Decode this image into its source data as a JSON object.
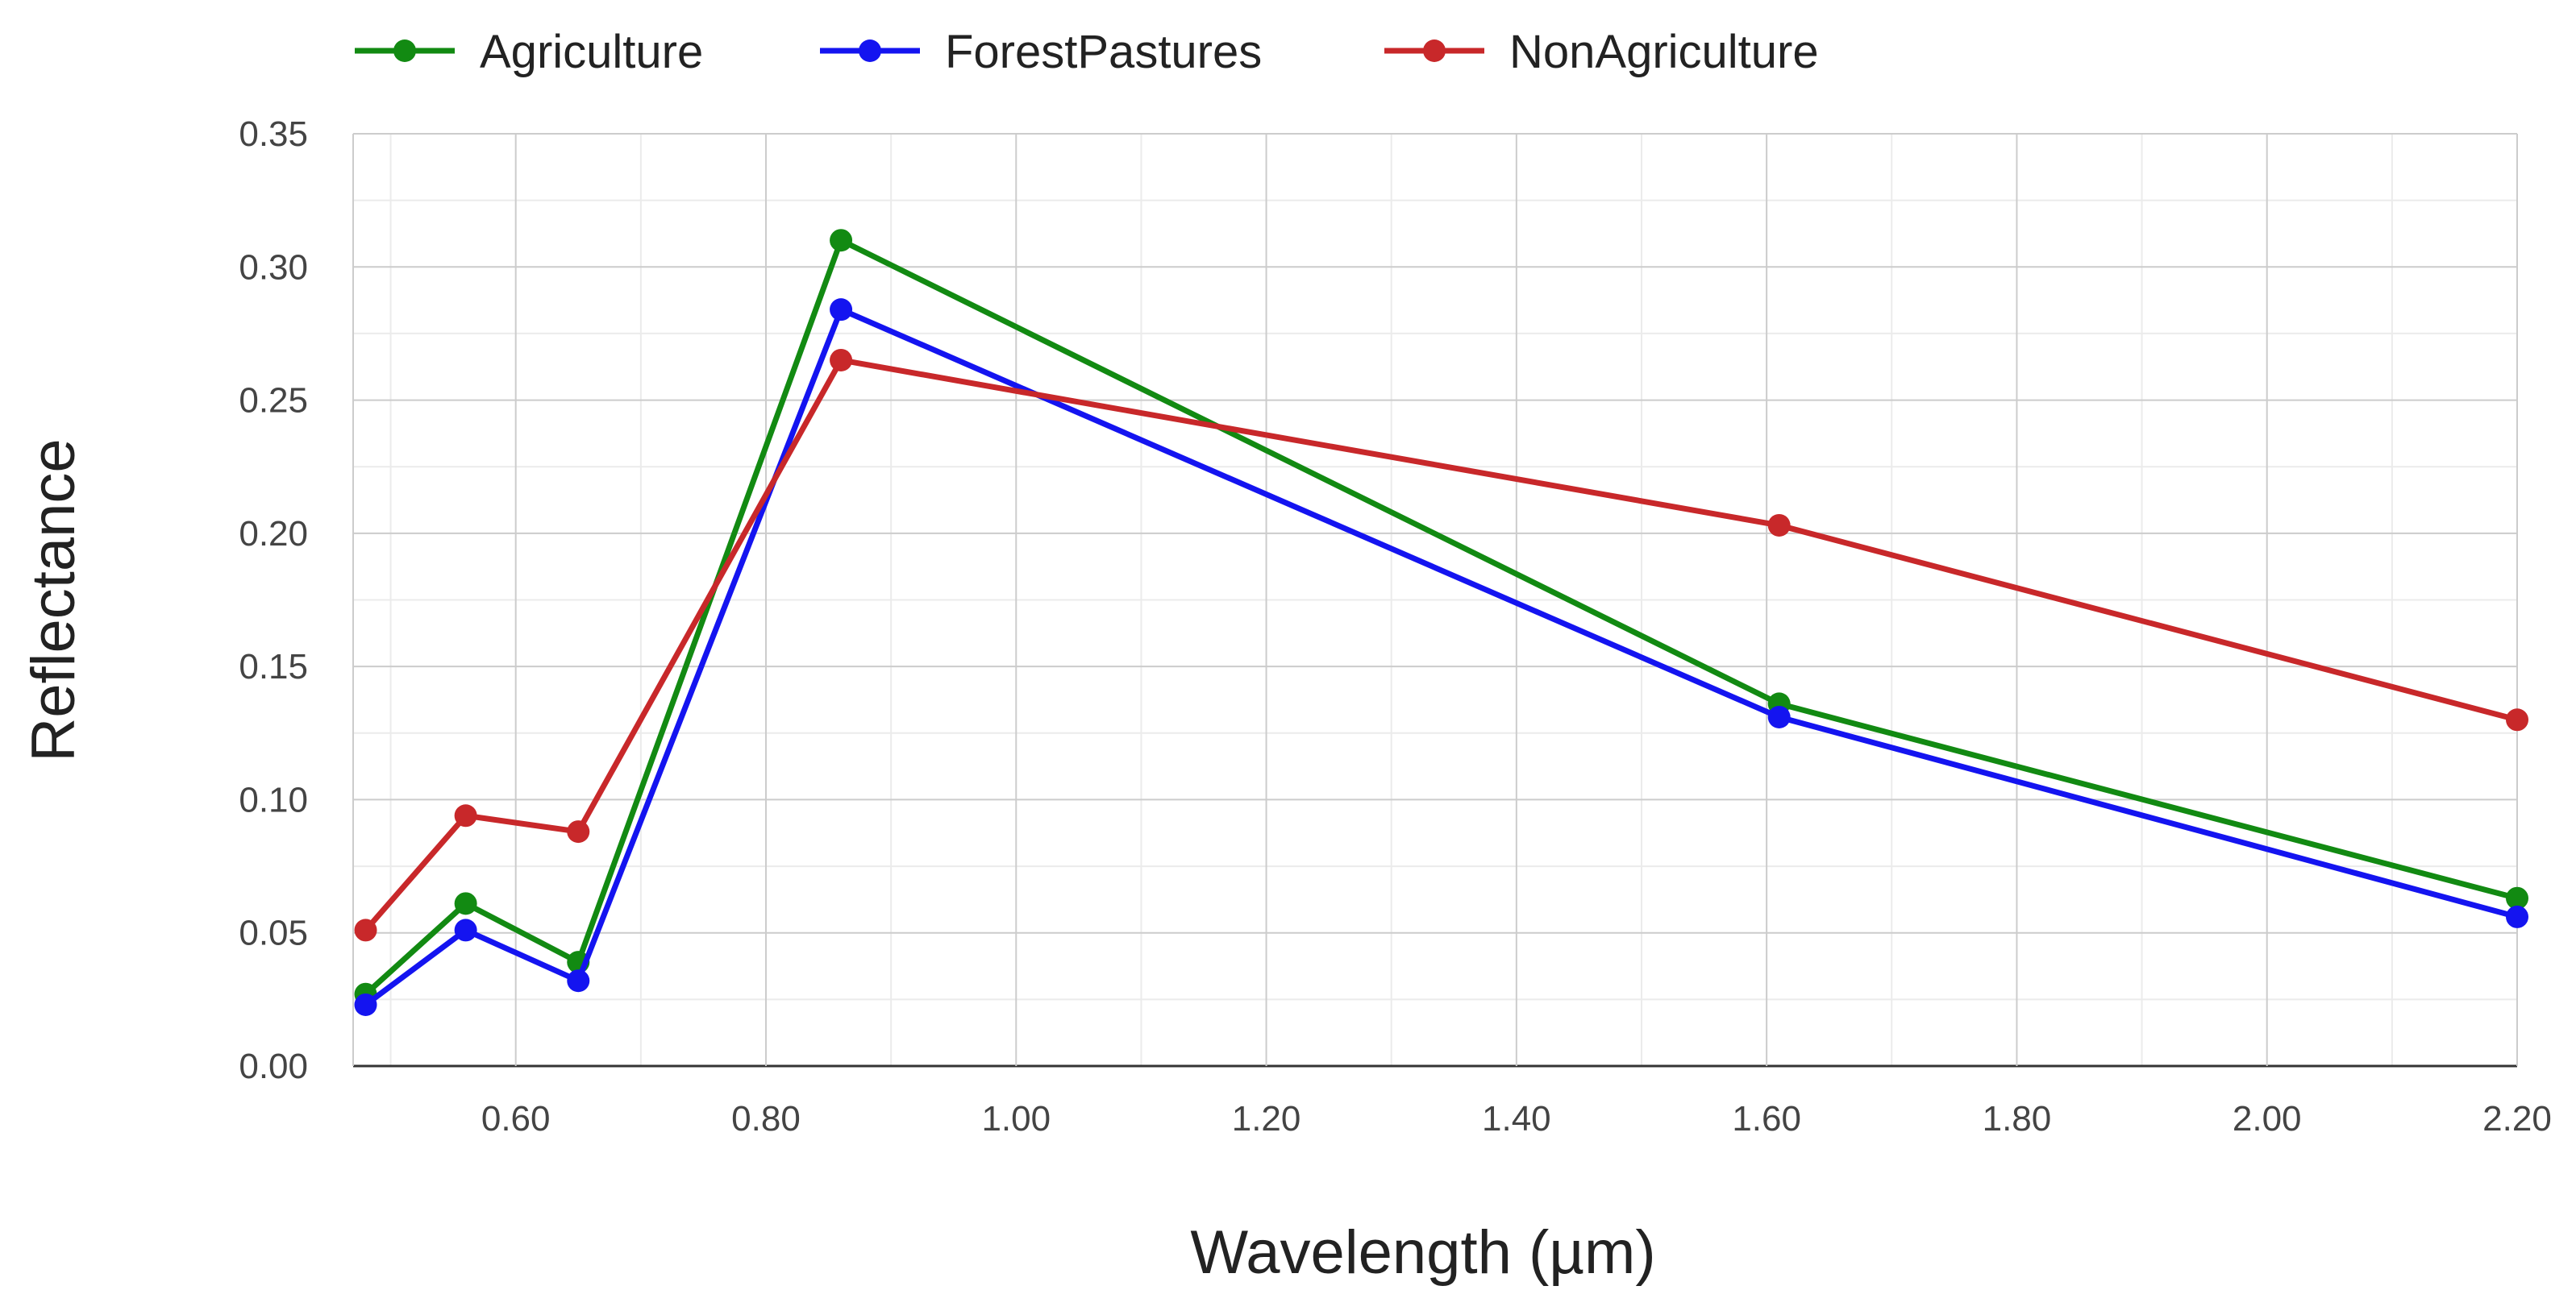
{
  "chart_data": {
    "type": "line",
    "title": "",
    "xlabel": "Wavelength (µm)",
    "ylabel": "Reflectance",
    "x": [
      0.48,
      0.56,
      0.65,
      0.86,
      1.61,
      2.2
    ],
    "xlim": [
      0.47,
      2.2
    ],
    "ylim": [
      0,
      0.35
    ],
    "x_ticks": [
      0.6,
      0.8,
      1.0,
      1.2,
      1.4,
      1.6,
      1.8,
      2.0,
      2.2
    ],
    "x_tick_labels": [
      "0.60",
      "0.80",
      "1.00",
      "1.20",
      "1.40",
      "1.60",
      "1.80",
      "2.00",
      "2.20"
    ],
    "y_ticks": [
      0,
      0.05,
      0.1,
      0.15,
      0.2,
      0.25,
      0.3,
      0.35
    ],
    "y_tick_labels": [
      "0.00",
      "0.05",
      "0.10",
      "0.15",
      "0.20",
      "0.25",
      "0.30",
      "0.35"
    ],
    "grid": true,
    "legend_position": "top-left",
    "series": [
      {
        "name": "Agriculture",
        "color": "#128a12",
        "values": [
          0.027,
          0.061,
          0.039,
          0.31,
          0.136,
          0.063
        ]
      },
      {
        "name": "ForestPastures",
        "color": "#1414f0",
        "values": [
          0.023,
          0.051,
          0.032,
          0.284,
          0.131,
          0.056
        ]
      },
      {
        "name": "NonAgriculture",
        "color": "#c8282a",
        "values": [
          0.051,
          0.094,
          0.088,
          0.265,
          0.203,
          0.13
        ]
      }
    ]
  }
}
